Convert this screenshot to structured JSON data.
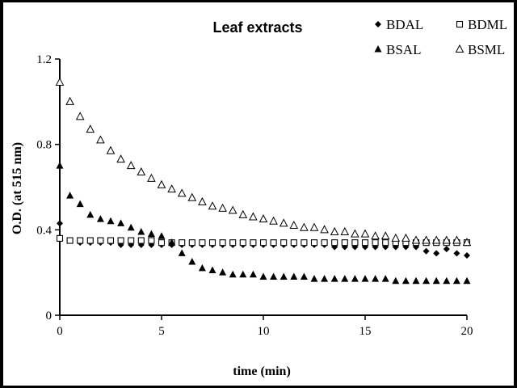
{
  "chart_data": {
    "type": "scatter",
    "title": "Leaf extracts",
    "xlabel": "time (min)",
    "ylabel": "O.D. (at 515 nm)",
    "xlim": [
      0,
      20
    ],
    "ylim": [
      0,
      1.2
    ],
    "xticks": [
      0,
      5,
      10,
      15,
      20
    ],
    "yticks": [
      0,
      0.4,
      0.8,
      1.2
    ],
    "ytick_labels": [
      "0",
      "0.4",
      "0.8",
      "1.2"
    ],
    "grid": false,
    "legend_position": "top-right",
    "x": [
      0,
      0.5,
      1,
      1.5,
      2,
      2.5,
      3,
      3.5,
      4,
      4.5,
      5,
      5.5,
      6,
      6.5,
      7,
      7.5,
      8,
      8.5,
      9,
      9.5,
      10,
      10.5,
      11,
      11.5,
      12,
      12.5,
      13,
      13.5,
      14,
      14.5,
      15,
      15.5,
      16,
      16.5,
      17,
      17.5,
      18,
      18.5,
      19,
      19.5,
      20
    ],
    "series": [
      {
        "name": "BDAL",
        "marker": "diamond-filled",
        "values": [
          0.43,
          0.35,
          0.34,
          0.34,
          0.34,
          0.34,
          0.33,
          0.33,
          0.33,
          0.33,
          0.33,
          0.33,
          0.33,
          0.33,
          0.33,
          0.33,
          0.33,
          0.33,
          0.33,
          0.33,
          0.33,
          0.33,
          0.33,
          0.33,
          0.33,
          0.33,
          0.33,
          0.32,
          0.32,
          0.32,
          0.32,
          0.32,
          0.32,
          0.32,
          0.32,
          0.32,
          0.3,
          0.29,
          0.31,
          0.29,
          0.28
        ]
      },
      {
        "name": "BDML",
        "marker": "square-open",
        "values": [
          0.36,
          0.35,
          0.35,
          0.35,
          0.35,
          0.35,
          0.35,
          0.35,
          0.35,
          0.35,
          0.34,
          0.34,
          0.34,
          0.34,
          0.34,
          0.34,
          0.34,
          0.34,
          0.34,
          0.34,
          0.34,
          0.34,
          0.34,
          0.34,
          0.34,
          0.34,
          0.34,
          0.34,
          0.34,
          0.34,
          0.34,
          0.34,
          0.34,
          0.34,
          0.34,
          0.34,
          0.34,
          0.34,
          0.34,
          0.34,
          0.34
        ]
      },
      {
        "name": "BSAL",
        "marker": "triangle-filled",
        "values": [
          0.7,
          0.56,
          0.52,
          0.47,
          0.45,
          0.44,
          0.43,
          0.41,
          0.39,
          0.38,
          0.37,
          0.34,
          0.29,
          0.25,
          0.22,
          0.21,
          0.2,
          0.19,
          0.19,
          0.19,
          0.18,
          0.18,
          0.18,
          0.18,
          0.18,
          0.17,
          0.17,
          0.17,
          0.17,
          0.17,
          0.17,
          0.17,
          0.17,
          0.16,
          0.16,
          0.16,
          0.16,
          0.16,
          0.16,
          0.16,
          0.16
        ]
      },
      {
        "name": "BSML",
        "marker": "triangle-open",
        "values": [
          1.09,
          1.0,
          0.93,
          0.87,
          0.82,
          0.77,
          0.73,
          0.7,
          0.67,
          0.64,
          0.61,
          0.59,
          0.57,
          0.55,
          0.53,
          0.51,
          0.5,
          0.49,
          0.47,
          0.46,
          0.45,
          0.44,
          0.43,
          0.42,
          0.41,
          0.41,
          0.4,
          0.39,
          0.39,
          0.38,
          0.38,
          0.37,
          0.37,
          0.36,
          0.36,
          0.35,
          0.35,
          0.35,
          0.35,
          0.35,
          0.34
        ]
      }
    ]
  }
}
